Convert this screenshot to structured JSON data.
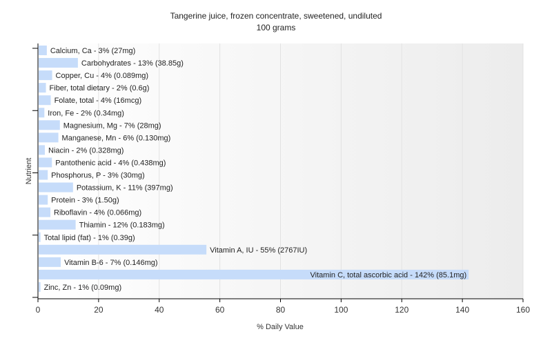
{
  "chart_data": {
    "type": "bar",
    "orientation": "horizontal",
    "title": "Tangerine juice, frozen concentrate, sweetened, undiluted",
    "subtitle": "100 grams",
    "xlabel": "% Daily Value",
    "ylabel": "Nutrient",
    "xlim": [
      0,
      160
    ],
    "xticks": [
      0,
      20,
      40,
      60,
      80,
      100,
      120,
      140,
      160
    ],
    "grid": true,
    "legend": "none",
    "bar_color": "#c6dcfa",
    "categories": [
      "Calcium, Ca",
      "Carbohydrates",
      "Copper, Cu",
      "Fiber, total dietary",
      "Folate, total",
      "Iron, Fe",
      "Magnesium, Mg",
      "Manganese, Mn",
      "Niacin",
      "Pantothenic acid",
      "Phosphorus, P",
      "Potassium, K",
      "Protein",
      "Riboflavin",
      "Thiamin",
      "Total lipid (fat)",
      "Vitamin A, IU",
      "Vitamin B-6",
      "Vitamin C, total ascorbic acid",
      "Zinc, Zn"
    ],
    "values": [
      2.7,
      12.95,
      4.45,
      2.4,
      4,
      1.89,
      7,
      6.5,
      2.05,
      4.38,
      3,
      11.34,
      3,
      3.88,
      12.2,
      0.6,
      55.34,
      7.3,
      141.83,
      0.6
    ],
    "labels": [
      "Calcium, Ca - 3% (27mg)",
      "Carbohydrates - 13% (38.85g)",
      "Copper, Cu - 4% (0.089mg)",
      "Fiber, total dietary - 2% (0.6g)",
      "Folate, total - 4% (16mcg)",
      "Iron, Fe - 2% (0.34mg)",
      "Magnesium, Mg - 7% (28mg)",
      "Manganese, Mn - 6% (0.130mg)",
      "Niacin - 2% (0.328mg)",
      "Pantothenic acid - 4% (0.438mg)",
      "Phosphorus, P - 3% (30mg)",
      "Potassium, K - 11% (397mg)",
      "Protein - 3% (1.50g)",
      "Riboflavin - 4% (0.066mg)",
      "Thiamin - 12% (0.183mg)",
      "Total lipid (fat) - 1% (0.39g)",
      "Vitamin A, IU - 55% (2767IU)",
      "Vitamin B-6 - 7% (0.146mg)",
      "Vitamin C, total ascorbic acid - 142% (85.1mg)",
      "Zinc, Zn - 1% (0.09mg)"
    ]
  }
}
